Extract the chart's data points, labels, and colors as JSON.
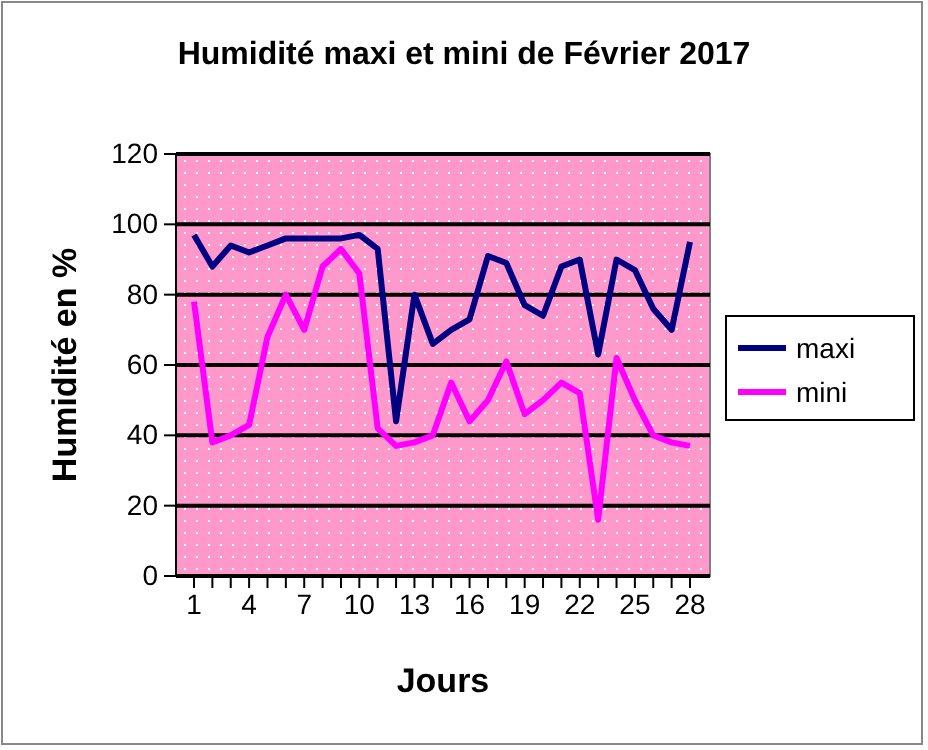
{
  "chart_data": {
    "type": "line",
    "title": "Humidité maxi et mini de Février 2017",
    "xlabel": "Jours",
    "ylabel": "Humidité en %",
    "categories": [
      "1",
      null,
      null,
      "4",
      null,
      null,
      "7",
      null,
      null,
      "10",
      null,
      null,
      "13",
      null,
      null,
      "16",
      null,
      null,
      "19",
      null,
      null,
      "22",
      null,
      null,
      "25",
      null,
      null,
      "28"
    ],
    "series": [
      {
        "name": "maxi",
        "color": "#000080",
        "values": [
          97,
          88,
          94,
          92,
          94,
          96,
          96,
          96,
          96,
          97,
          93,
          44,
          80,
          66,
          70,
          73,
          91,
          89,
          77,
          74,
          88,
          90,
          63,
          90,
          87,
          76,
          70,
          95
        ]
      },
      {
        "name": "mini",
        "color": "#ff00ff",
        "values": [
          78,
          38,
          40,
          43,
          68,
          80,
          70,
          88,
          93,
          86,
          42,
          37,
          38,
          40,
          55,
          44,
          50,
          61,
          46,
          50,
          55,
          52,
          16,
          62,
          50,
          40,
          38,
          37
        ]
      }
    ],
    "ylim": [
      0,
      120
    ],
    "yticks": [
      0,
      20,
      40,
      60,
      80,
      100,
      120
    ],
    "grid": "y",
    "legend": "right",
    "marker": "none",
    "line_style": "solid"
  }
}
